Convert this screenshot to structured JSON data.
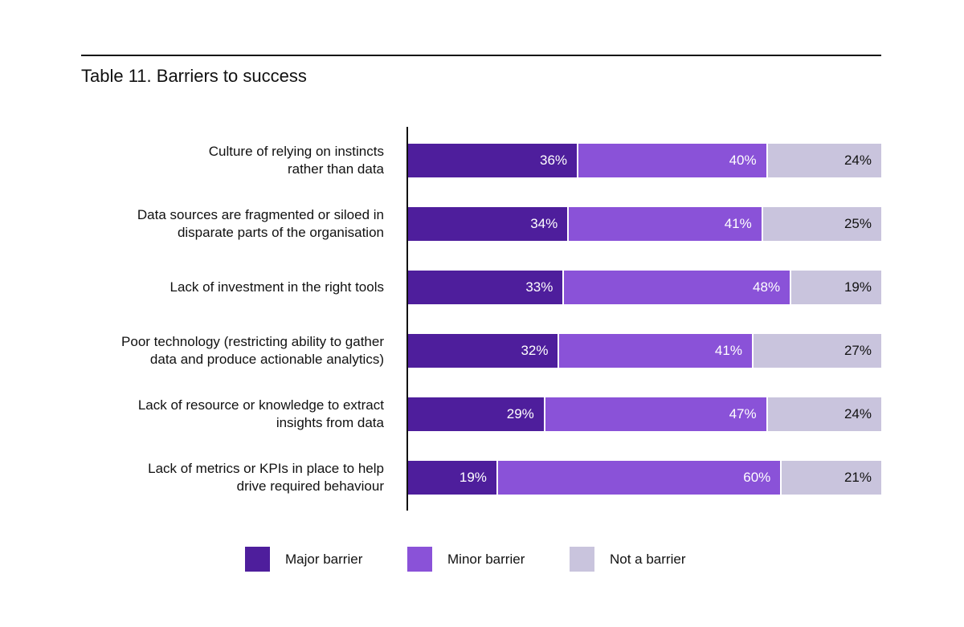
{
  "chart_data": {
    "type": "bar",
    "orientation": "horizontal",
    "stacked": true,
    "title": "Table 11. Barriers to success",
    "xlabel": "",
    "ylabel": "",
    "xlim": [
      0,
      100
    ],
    "legend_position": "bottom",
    "categories": [
      [
        "Culture of relying on instincts",
        "rather than data"
      ],
      [
        "Data sources are fragmented or siloed in",
        "disparate parts of the organisation"
      ],
      [
        "Lack of investment in the right tools"
      ],
      [
        "Poor technology (restricting ability to gather",
        "data and produce actionable analytics)"
      ],
      [
        "Lack of resource or knowledge to extract",
        "insights from data"
      ],
      [
        "Lack of metrics or KPIs in place to help",
        "drive required behaviour"
      ]
    ],
    "series": [
      {
        "name": "Major barrier",
        "color": "#4e1e9c",
        "text_color": "#ffffff",
        "values": [
          36,
          34,
          33,
          32,
          29,
          19
        ]
      },
      {
        "name": "Minor barrier",
        "color": "#8a52d8",
        "text_color": "#ffffff",
        "values": [
          40,
          41,
          48,
          41,
          47,
          60
        ]
      },
      {
        "name": "Not a barrier",
        "color": "#c9c4dd",
        "text_color": "#111111",
        "values": [
          24,
          25,
          19,
          27,
          24,
          21
        ]
      }
    ]
  }
}
